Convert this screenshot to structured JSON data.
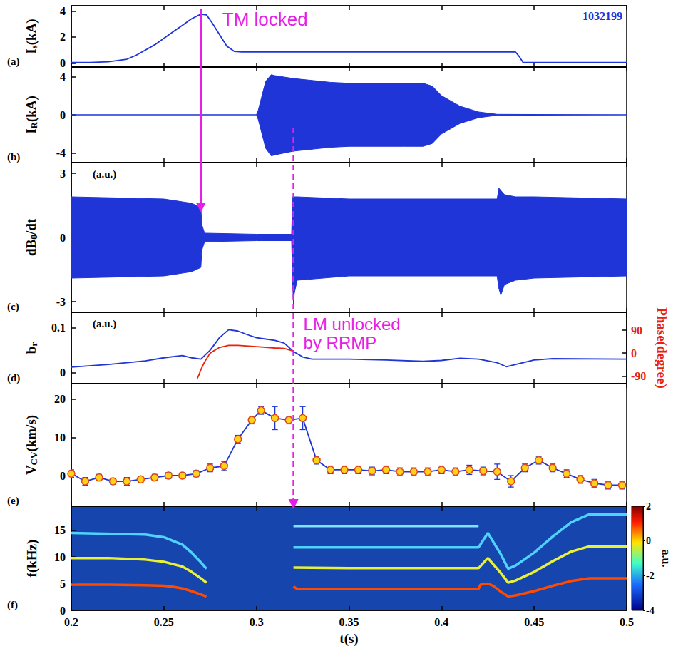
{
  "chart_data": [
    {
      "type": "line",
      "panel": "(a)",
      "y_title": {
        "main": "I",
        "sub": "s",
        "rest": "(kA)"
      },
      "label": "1032199",
      "xlim": [
        0.2,
        0.5
      ],
      "xticks": [
        0.2,
        0.25,
        0.3,
        0.35,
        0.4,
        0.45,
        0.5
      ],
      "ylim": [
        -0.3,
        4.4
      ],
      "yticks": [
        0,
        2,
        4
      ],
      "tick_labels": "y",
      "grid": false,
      "series": [
        {
          "color": "#1f35d8",
          "x": [
            0.2,
            0.21,
            0.22,
            0.23,
            0.235,
            0.24,
            0.245,
            0.25,
            0.255,
            0.26,
            0.265,
            0.27,
            0.273,
            0.276,
            0.28,
            0.284,
            0.288,
            0.292,
            0.3,
            0.35,
            0.4,
            0.44,
            0.442,
            0.444,
            0.45,
            0.5
          ],
          "values": [
            0.05,
            0.05,
            0.1,
            0.3,
            0.6,
            1.0,
            1.4,
            1.9,
            2.4,
            2.9,
            3.4,
            3.75,
            3.7,
            3.1,
            2.2,
            1.3,
            0.9,
            0.85,
            0.85,
            0.85,
            0.85,
            0.85,
            0.5,
            0.05,
            0.05,
            0.05
          ]
        }
      ],
      "annotations": [
        {
          "text": "TM locked",
          "x": 0.27,
          "color": "#e61ee6",
          "line_style": "solid"
        }
      ]
    },
    {
      "type": "band",
      "panel": "(b)",
      "y_title": {
        "main": "I",
        "sub": "R",
        "rest": "(kA)"
      },
      "xlim": [
        0.2,
        0.5
      ],
      "xticks": [
        0.2,
        0.25,
        0.3,
        0.35,
        0.4,
        0.45,
        0.5
      ],
      "ylim": [
        -5,
        5
      ],
      "yticks": [
        -4,
        0,
        4
      ],
      "tick_labels": "y",
      "grid": false,
      "series": [
        {
          "color": "#1f35d8",
          "x": [
            0.2,
            0.3,
            0.301,
            0.305,
            0.308,
            0.31,
            0.32,
            0.33,
            0.34,
            0.35,
            0.38,
            0.39,
            0.395,
            0.4,
            0.41,
            0.42,
            0.43,
            0.5
          ],
          "upper": [
            0,
            0,
            0.5,
            3.5,
            4.2,
            4.1,
            3.8,
            3.6,
            3.4,
            3.3,
            3.3,
            3.3,
            3.0,
            2.0,
            0.9,
            0.3,
            0.05,
            0
          ],
          "lower": [
            0,
            0,
            -0.5,
            -3.5,
            -4.3,
            -4.2,
            -3.8,
            -3.6,
            -3.4,
            -3.3,
            -3.3,
            -3.3,
            -3.0,
            -2.0,
            -0.9,
            -0.3,
            -0.05,
            0
          ]
        }
      ]
    },
    {
      "type": "band",
      "panel": "(c)",
      "y_title": {
        "main": "dB",
        "sub": "θ",
        "rest": "/dt"
      },
      "label": "(a.u.)",
      "xlim": [
        0.2,
        0.5
      ],
      "xticks": [
        0.2,
        0.25,
        0.3,
        0.35,
        0.4,
        0.45,
        0.5
      ],
      "ylim": [
        -3.5,
        3.5
      ],
      "yticks": [
        -3,
        0,
        3
      ],
      "tick_labels": "y",
      "grid": false,
      "series": [
        {
          "color": "#1f35d8",
          "x": [
            0.2,
            0.25,
            0.265,
            0.27,
            0.2705,
            0.272,
            0.3,
            0.319,
            0.3195,
            0.32,
            0.3205,
            0.322,
            0.35,
            0.42,
            0.43,
            0.431,
            0.432,
            0.434,
            0.44,
            0.45,
            0.5
          ],
          "upper": [
            1.9,
            1.8,
            1.6,
            1.4,
            0.6,
            0.2,
            0.15,
            0.15,
            1.9,
            1.9,
            1.9,
            1.9,
            1.8,
            1.8,
            1.8,
            2.3,
            2.2,
            2.0,
            1.9,
            1.9,
            1.8
          ],
          "lower": [
            -1.9,
            -1.8,
            -1.6,
            -1.4,
            -0.6,
            -0.2,
            -0.15,
            -0.15,
            -2.0,
            -3.1,
            -2.6,
            -2.0,
            -1.8,
            -1.8,
            -1.8,
            -2.4,
            -2.7,
            -2.2,
            -2.0,
            -1.9,
            -1.8
          ]
        }
      ]
    },
    {
      "type": "line",
      "panel": "(d)",
      "y_title": {
        "main": "b",
        "sub": "r"
      },
      "y2_title": "Phase(degree)",
      "label": "(a.u.)",
      "xlim": [
        0.2,
        0.5
      ],
      "xticks": [
        0.2,
        0.25,
        0.3,
        0.35,
        0.4,
        0.45,
        0.5
      ],
      "ylim": [
        -0.025,
        0.135
      ],
      "yticks": [
        0,
        0.1
      ],
      "y2lim": [
        -120,
        160
      ],
      "y2ticks": [
        -90,
        0,
        90
      ],
      "tick_labels": "y",
      "grid": false,
      "series": [
        {
          "color": "#1f35d8",
          "x": [
            0.2,
            0.22,
            0.24,
            0.25,
            0.26,
            0.265,
            0.27,
            0.275,
            0.28,
            0.285,
            0.29,
            0.295,
            0.3,
            0.305,
            0.31,
            0.315,
            0.32,
            0.325,
            0.33,
            0.35,
            0.37,
            0.39,
            0.4,
            0.41,
            0.42,
            0.43,
            0.435,
            0.44,
            0.45,
            0.46,
            0.5
          ],
          "values": [
            0.012,
            0.018,
            0.026,
            0.033,
            0.038,
            0.033,
            0.03,
            0.05,
            0.078,
            0.096,
            0.093,
            0.085,
            0.078,
            0.075,
            0.072,
            0.066,
            0.047,
            0.035,
            0.03,
            0.03,
            0.028,
            0.025,
            0.027,
            0.032,
            0.03,
            0.022,
            0.013,
            0.018,
            0.028,
            0.031,
            0.03
          ]
        },
        {
          "color": "#e8220b",
          "axis": "y2",
          "x": [
            0.268,
            0.269,
            0.27,
            0.272,
            0.275,
            0.28,
            0.285,
            0.29,
            0.3,
            0.31,
            0.315,
            0.32
          ],
          "values": [
            -100,
            -85,
            -65,
            -35,
            0,
            22,
            30,
            30,
            25,
            20,
            18,
            8
          ]
        }
      ],
      "annotations": [
        {
          "text": "LM unlocked by RRMP",
          "x": 0.32,
          "color": "#e61ee6",
          "line_style": "dashed"
        }
      ]
    },
    {
      "type": "line",
      "panel": "(e)",
      "y_title": {
        "main": "V",
        "sub": "CV",
        "rest": "(km/s)"
      },
      "xlim": [
        0.2,
        0.5
      ],
      "xticks": [
        0.2,
        0.25,
        0.3,
        0.35,
        0.4,
        0.45,
        0.5
      ],
      "ylim": [
        -8,
        24
      ],
      "yticks": [
        0,
        10,
        20
      ],
      "tick_labels": "y",
      "grid": false,
      "series": [
        {
          "color": "#1f35d8",
          "marker": "circle",
          "x": [
            0.2,
            0.2075,
            0.215,
            0.2225,
            0.23,
            0.2375,
            0.245,
            0.2525,
            0.26,
            0.2675,
            0.275,
            0.2825,
            0.29,
            0.2975,
            0.3025,
            0.31,
            0.3175,
            0.325,
            0.3325,
            0.34,
            0.3475,
            0.355,
            0.3625,
            0.37,
            0.3775,
            0.385,
            0.3925,
            0.4,
            0.4075,
            0.415,
            0.4225,
            0.43,
            0.4375,
            0.445,
            0.4525,
            0.46,
            0.4675,
            0.475,
            0.4825,
            0.49,
            0.4975
          ],
          "values": [
            0.5,
            -1.5,
            -0.5,
            -1.5,
            -1.5,
            -1,
            -0.5,
            0,
            0,
            0.5,
            2,
            2.5,
            9.5,
            14.5,
            17,
            15,
            14.5,
            15,
            4,
            1.5,
            1.5,
            1.5,
            1.2,
            1.5,
            1,
            1,
            1,
            1.5,
            1,
            1.5,
            1.2,
            1,
            -1.5,
            2,
            4,
            2,
            0.5,
            -1,
            -2,
            -2.5,
            -2.5
          ],
          "errors": [
            1,
            1,
            0.8,
            0.8,
            1,
            0.8,
            0.8,
            0.8,
            0.8,
            0.8,
            1,
            1.2,
            1,
            1,
            1,
            3,
            1,
            3,
            1,
            1,
            1,
            1,
            1,
            1,
            1,
            1,
            1,
            1,
            1,
            1.2,
            1,
            2,
            1.5,
            1,
            1,
            1,
            1,
            1,
            1,
            1,
            1
          ]
        }
      ]
    },
    {
      "type": "spectrogram",
      "panel": "(f)",
      "y_title": {
        "main": "f(kHz)"
      },
      "x_title": "t(s)",
      "xlim": [
        0.2,
        0.5
      ],
      "xticks": [
        0.2,
        0.25,
        0.3,
        0.35,
        0.4,
        0.45,
        0.5
      ],
      "ylim": [
        0,
        19.5
      ],
      "yticks": [
        0,
        5,
        10,
        15
      ],
      "grid": false,
      "series": [
        {
          "color": "#ff4a00",
          "x": [
            0.2,
            0.22,
            0.24,
            0.25,
            0.255,
            0.26,
            0.265,
            0.27,
            0.273,
            0.3,
            0.32,
            0.322,
            0.35,
            0.38,
            0.41,
            0.42,
            0.421,
            0.425,
            0.428,
            0.432,
            0.436,
            0.44,
            0.45,
            0.46,
            0.47,
            0.48,
            0.5
          ],
          "values": [
            4.8,
            4.8,
            4.7,
            4.6,
            4.4,
            4.1,
            3.6,
            3.0,
            2.6,
            null,
            4.5,
            4.0,
            4.0,
            4.0,
            4.0,
            4.0,
            4.8,
            5.0,
            4.6,
            3.5,
            2.6,
            2.8,
            3.6,
            4.6,
            5.5,
            6.0,
            6.0
          ]
        },
        {
          "color": "#e8f03a",
          "x": [
            0.2,
            0.22,
            0.24,
            0.25,
            0.26,
            0.265,
            0.27,
            0.273,
            0.3,
            0.32,
            0.35,
            0.42,
            0.425,
            0.432,
            0.436,
            0.44,
            0.45,
            0.46,
            0.47,
            0.48,
            0.5
          ],
          "values": [
            9.8,
            9.8,
            9.5,
            9.1,
            8.2,
            7.2,
            6.0,
            5.2,
            null,
            8.0,
            7.9,
            7.9,
            9.8,
            7.0,
            5.2,
            5.6,
            7.2,
            9.2,
            11,
            12,
            12
          ]
        },
        {
          "color": "#4fd2ff",
          "x": [
            0.2,
            0.24,
            0.25,
            0.26,
            0.265,
            0.27,
            0.273,
            0.3,
            0.32,
            0.42,
            0.425,
            0.432,
            0.436,
            0.44,
            0.45,
            0.46,
            0.47,
            0.48,
            0.5
          ],
          "values": [
            14.5,
            14.2,
            13.7,
            12.3,
            10.8,
            9.0,
            7.8,
            null,
            11.8,
            11.8,
            14.5,
            10.5,
            7.8,
            8.4,
            10.8,
            13.8,
            16.5,
            18,
            18
          ]
        },
        {
          "color": "#7fe3ff",
          "x": [
            0.32,
            0.42
          ],
          "values": [
            15.8,
            15.8
          ]
        }
      ],
      "colorbar": {
        "range": [
          -4,
          2
        ],
        "ticks": [
          -4,
          -2,
          0,
          2
        ],
        "title": "a.u."
      }
    }
  ]
}
